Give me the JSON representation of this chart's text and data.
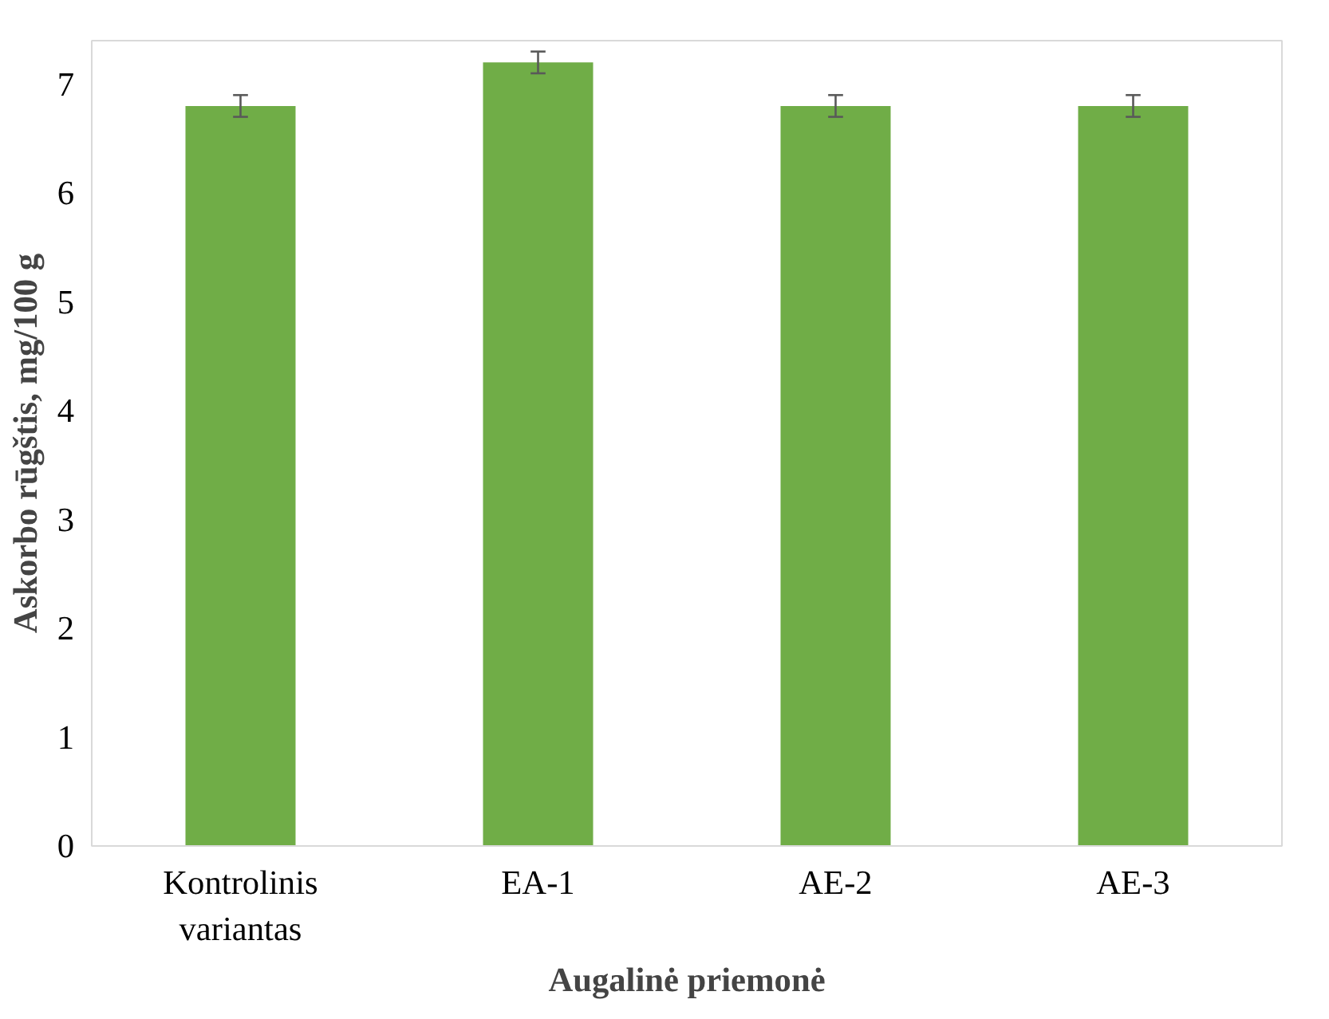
{
  "chart_data": {
    "type": "bar",
    "xlabel": "Augalinė priemonė",
    "ylabel": "Askorbo rūgštis, mg/100 g",
    "categories": [
      "Kontrolinis\nvariantas",
      "EA-1",
      "AE-2",
      "AE-3"
    ],
    "values": [
      6.8,
      7.2,
      6.8,
      6.8
    ],
    "errors": [
      0.1,
      0.1,
      0.1,
      0.1
    ],
    "color": "#70ad47",
    "ylim": [
      0,
      7.4
    ],
    "yticks": [
      0,
      1,
      2,
      3,
      4,
      5,
      6,
      7
    ],
    "grid": false
  }
}
